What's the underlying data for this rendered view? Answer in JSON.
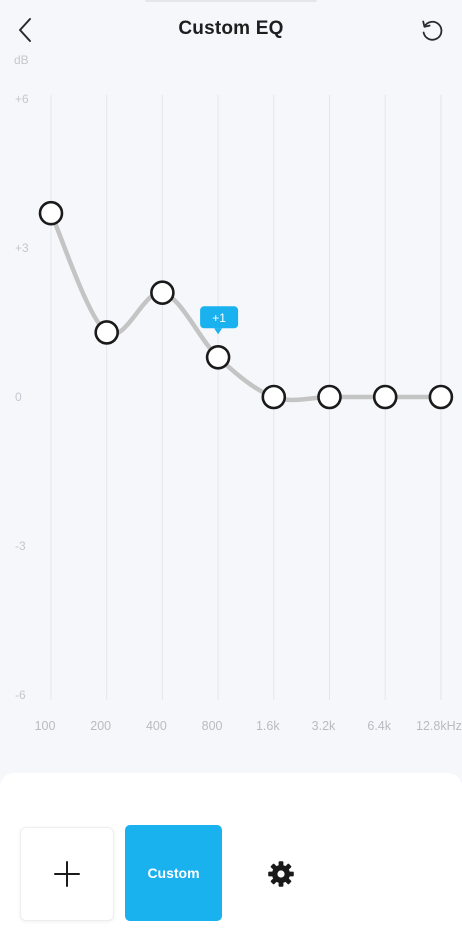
{
  "header": {
    "title": "Custom EQ",
    "back_icon": "chevron-left-icon",
    "reset_icon": "reset-icon"
  },
  "chart_data": {
    "type": "line",
    "ylabel": "dB",
    "yticks": [
      "+6",
      "+3",
      "0",
      "-3",
      "-6"
    ],
    "ylim": [
      -6,
      6
    ],
    "categories": [
      "100",
      "200",
      "400",
      "800",
      "1.6k",
      "3.2k",
      "6.4k",
      "12.8kHz"
    ],
    "values": [
      3.7,
      1.3,
      2.1,
      0.8,
      0,
      0,
      0,
      0
    ],
    "tooltip": {
      "band_index": 3,
      "text": "+1"
    },
    "colors": {
      "curve": "#c4c4c4",
      "handle": "#1a1a1a",
      "tooltip": "#1ab1ef",
      "grid": "#e3e7ed"
    }
  },
  "bottom": {
    "add_icon": "plus-icon",
    "preset_label": "Custom",
    "settings_icon": "gear-icon",
    "accent_color": "#1ab1ef"
  }
}
